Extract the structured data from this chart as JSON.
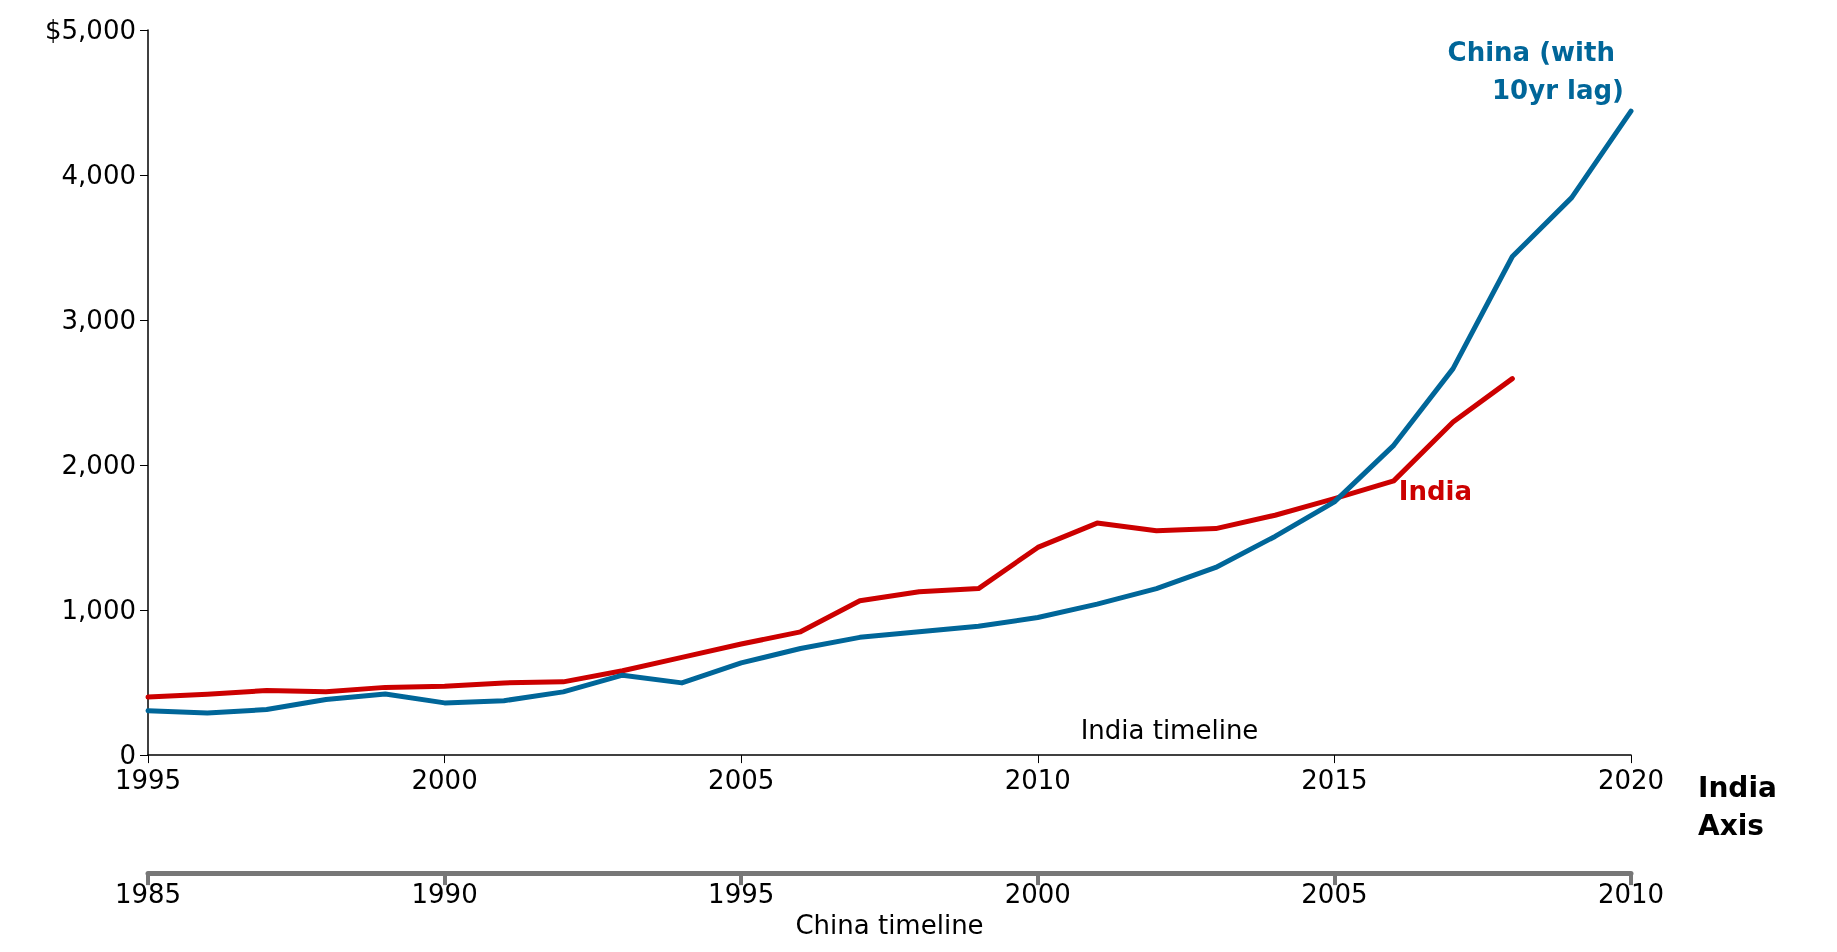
{
  "chart_data": {
    "type": "line",
    "xlabel": "India timeline",
    "x2label": "China timeline",
    "xlim": [
      1995,
      2020
    ],
    "xticks": [
      1995,
      2000,
      2005,
      2010,
      2015,
      2020
    ],
    "x2lim": [
      1985,
      2010
    ],
    "x2ticks": [
      1985,
      1990,
      1995,
      2000,
      2005,
      2010
    ],
    "ylim": [
      0,
      5000
    ],
    "yticks": [
      {
        "value": 0,
        "label": "0"
      },
      {
        "value": 1000,
        "label": "1,000"
      },
      {
        "value": 2000,
        "label": "2,000"
      },
      {
        "value": 3000,
        "label": "3,000"
      },
      {
        "value": 4000,
        "label": "4,000"
      },
      {
        "value": 5000,
        "label": "$5,000"
      }
    ],
    "series": [
      {
        "name": "China (with 10yr lag)",
        "color": "#006699",
        "axis": "x2",
        "x": [
          1985,
          1986,
          1987,
          1988,
          1989,
          1990,
          1991,
          1992,
          1993,
          1994,
          1995,
          1996,
          1997,
          1998,
          1999,
          2000,
          2001,
          2002,
          2003,
          2004,
          2005,
          2006,
          2007,
          2008,
          2009,
          2010
        ],
        "values": [
          306,
          291,
          314,
          383,
          421,
          360,
          375,
          436,
          551,
          498,
          636,
          735,
          812,
          850,
          888,
          949,
          1041,
          1148,
          1294,
          1508,
          1746,
          2136,
          2665,
          3438,
          3844,
          4441
        ]
      },
      {
        "name": "India",
        "color": "#cc0000",
        "x": [
          1995,
          1996,
          1997,
          1998,
          1999,
          2000,
          2001,
          2002,
          2003,
          2004,
          2005,
          2006,
          2007,
          2008,
          2009,
          2010,
          2011,
          2012,
          2013,
          2014,
          2015,
          2016,
          2017,
          2018
        ],
        "values": [
          400,
          420,
          445,
          437,
          467,
          475,
          498,
          505,
          582,
          674,
          766,
          850,
          1064,
          1126,
          1148,
          1432,
          1600,
          1547,
          1562,
          1654,
          1769,
          1891,
          2297,
          2596
        ]
      }
    ],
    "annotations": [
      "India Axis"
    ],
    "grid": false,
    "legend": false,
    "marker": "none",
    "line_style": "solid"
  }
}
